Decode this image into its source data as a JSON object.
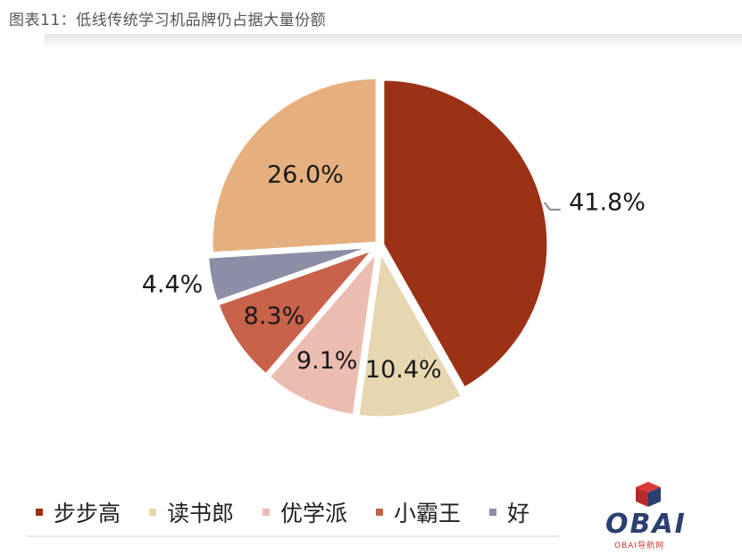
{
  "title": "图表11：低线传统学习机品牌仍占据大量份额",
  "chart_data": {
    "type": "pie",
    "series": [
      {
        "name": "步步高",
        "value": 41.8,
        "label": "41.8%",
        "color": "#9b3115"
      },
      {
        "name": "读书郎",
        "value": 10.4,
        "label": "10.4%",
        "color": "#e6d7b1"
      },
      {
        "name": "优学派",
        "value": 9.1,
        "label": "9.1%",
        "color": "#ebbdb0"
      },
      {
        "name": "小霸王",
        "value": 8.3,
        "label": "8.3%",
        "color": "#c8624a"
      },
      {
        "name": "",
        "value": 4.4,
        "label": "4.4%",
        "color": "#8b8ea4"
      },
      {
        "name": "",
        "value": 26.0,
        "label": "26.0%",
        "color": "#e6b07e"
      }
    ],
    "legend_position": "bottom"
  },
  "legend_visible": [
    {
      "label": "步步高",
      "color": "#9b3115"
    },
    {
      "label": "读书郎",
      "color": "#e6d7b1"
    },
    {
      "label": "优学派",
      "color": "#ebbdb0"
    },
    {
      "label": "小霸王",
      "color": "#c8624a"
    },
    {
      "label": "好",
      "color": "#8b8ea4"
    }
  ],
  "watermark": {
    "text": "OBAI",
    "subtext": "OBAI导航网",
    "brand_color": "#2b3f73",
    "accent_color": "#c0392b"
  }
}
